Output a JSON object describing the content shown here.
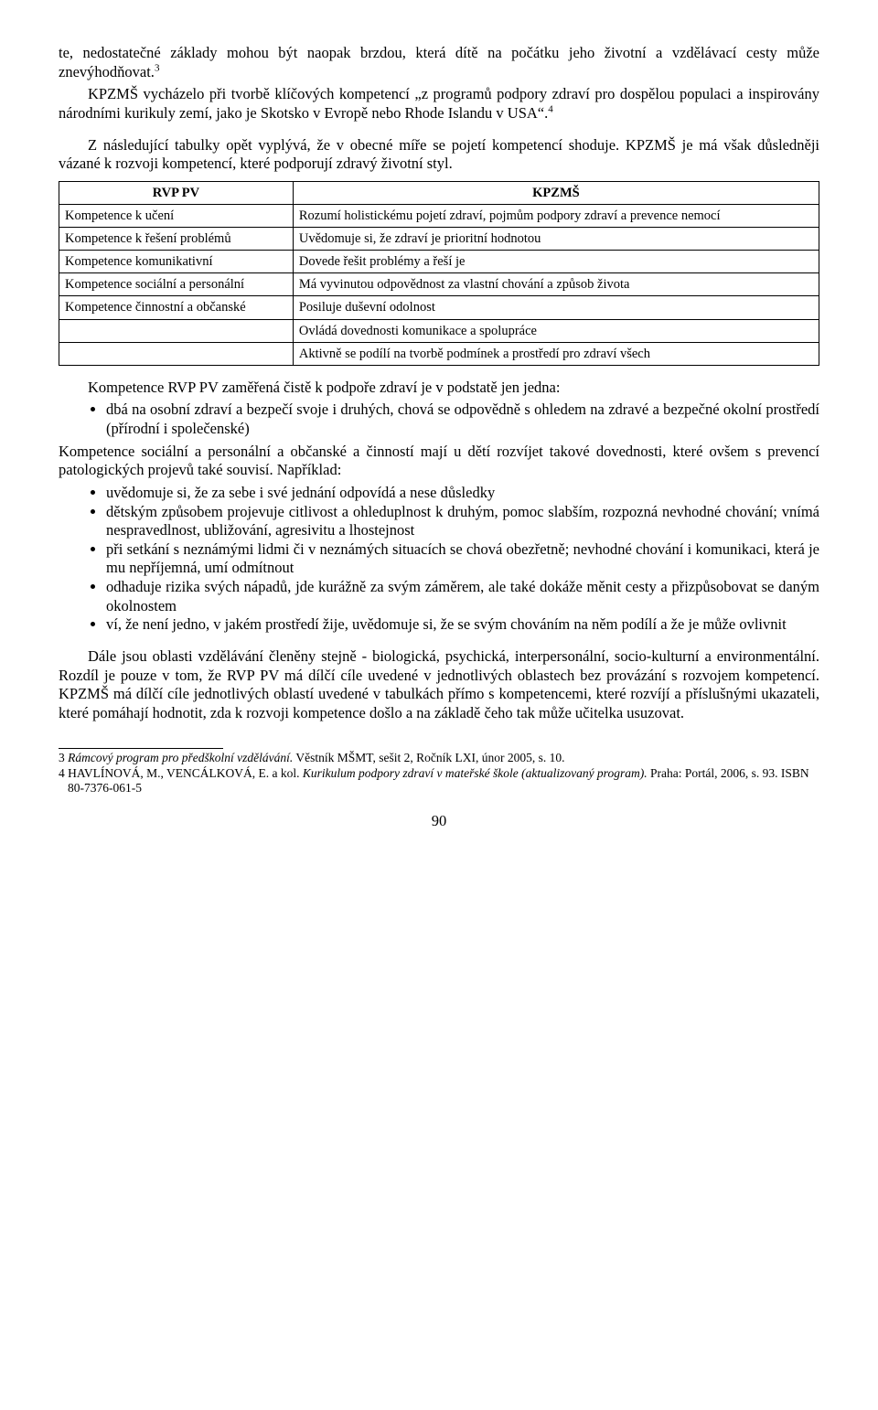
{
  "para1_a": "te, nedostatečné základy mohou být naopak brzdou, která dítě na počátku jeho životní a vzdělávací cesty může znevýhodňovat.",
  "sup1": "3",
  "para2_a": "KPZMŠ vycházelo při tvorbě klíčových kompetencí „z programů podpory zdraví pro dospělou populaci a inspirovány národními kurikuly zemí, jako je Skotsko v Evropě nebo Rhode Islandu v USA“.",
  "sup2": "4",
  "para3": "Z následující tabulky opět vyplývá, že v obecné míře se pojetí kompetencí shoduje. KPZMŠ je má však důsledněji vázané k rozvoji kompetencí, které podporují zdravý životní styl.",
  "table": {
    "headers": [
      "RVP PV",
      "KPZMŠ"
    ],
    "rows": [
      [
        "Kompetence k učení",
        "Rozumí holistickému pojetí zdraví, pojmům podpory zdraví a prevence nemocí"
      ],
      [
        "Kompetence k řešení problémů",
        "Uvědomuje si, že zdraví je prioritní hodnotou"
      ],
      [
        "Kompetence komunikativní",
        "Dovede řešit problémy a řeší je"
      ],
      [
        "Kompetence sociální a personální",
        "Má vyvinutou odpovědnost za vlastní chování a způsob života"
      ],
      [
        "Kompetence činnostní a občanské",
        "Posiluje duševní odolnost"
      ],
      [
        "",
        "Ovládá dovednosti komunikace a spolupráce"
      ],
      [
        "",
        "Aktivně se podílí na tvorbě podmínek a prostředí pro zdraví všech"
      ]
    ]
  },
  "para4": "Kompetence RVP PV zaměřená čistě k podpoře zdraví je v podstatě jen jedna:",
  "list1": [
    "dbá na osobní zdraví a bezpečí svoje i druhých, chová se odpovědně s ohledem na zdravé a bezpečné okolní prostředí (přírodní i společenské)"
  ],
  "para5": "Kompetence sociální a personální a občanské a činností mají u dětí rozvíjet takové dovednosti, které ovšem s prevencí patologických projevů také souvisí. Například:",
  "list2": [
    "uvědomuje si, že za sebe i své jednání odpovídá a nese důsledky",
    "dětským způsobem projevuje citlivost a ohleduplnost k druhým, pomoc slabším, rozpozná nevhodné chování; vnímá nespravedlnost, ubližování, agresivitu a lhostejnost",
    "při setkání s neznámými lidmi či v neznámých situacích se chová obezřetně; nevhodné chování i komunikaci, která je mu nepříjemná, umí odmítnout",
    "odhaduje rizika svých nápadů, jde kurážně za svým záměrem, ale také dokáže měnit cesty a přizpůsobovat se daným okolnostem",
    "ví, že není jedno, v jakém prostředí žije, uvědomuje si, že se svým chováním na něm podílí a že je může ovlivnit"
  ],
  "para6": "Dále jsou oblasti vzdělávání členěny stejně - biologická, psychická, interpersonální, socio-kulturní a environmentální. Rozdíl je pouze v tom, že RVP PV má dílčí cíle uvedené v jednotlivých oblastech bez provázání s rozvojem kompetencí. KPZMŠ má dílčí cíle jednotlivých oblastí uvedené v tabulkách přímo s kompetencemi, které rozvíjí a příslušnými ukazateli, které pomáhají hodnotit, zda k rozvoji kompetence došlo a na základě čeho tak může učitelka usuzovat.",
  "footnotes": {
    "f1_num": "3 ",
    "f1_italic": "Rámcový program pro předškolní vzdělávání.",
    "f1_rest": " Věstník MŠMT, sešit 2, Ročník LXI, únor 2005, s. 10.",
    "f2_num": "4 HAVLÍNOVÁ, M., VENCÁLKOVÁ, E. a kol. ",
    "f2_italic": "Kurikulum podpory zdraví v mateřské škole (aktualizovaný program).",
    "f2_rest": " Praha: Portál, 2006, s. 93. ISBN 80-7376-061-5"
  },
  "page_number": "90"
}
